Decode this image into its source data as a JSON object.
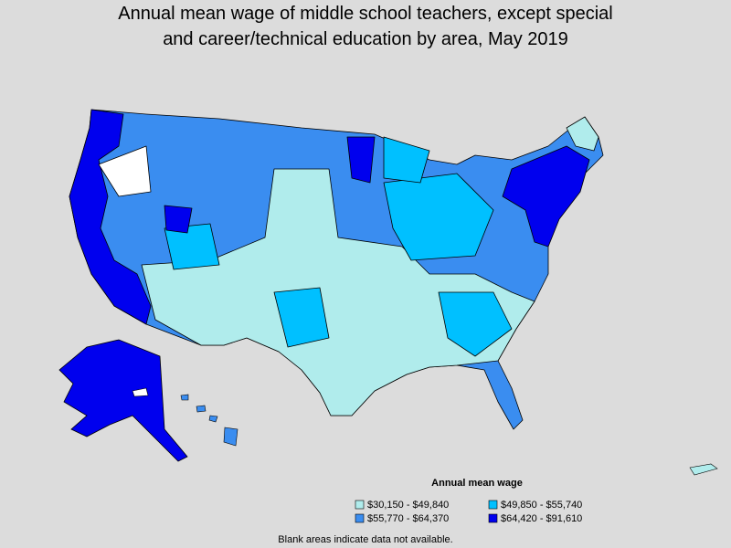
{
  "title": [
    "Annual mean wage of middle school teachers, except special",
    "and career/technical education by area, May 2019"
  ],
  "legend": {
    "title": "Annual mean wage",
    "items": [
      {
        "label": "$30,150 - $49,840",
        "color": "#b0ecec"
      },
      {
        "label": "$49,850 - $55,740",
        "color": "#00c0ff"
      },
      {
        "label": "$55,770 - $64,370",
        "color": "#3a8df0"
      },
      {
        "label": "$64,420 - $91,610",
        "color": "#0000ee"
      }
    ]
  },
  "note": "Blank areas indicate data not available."
}
